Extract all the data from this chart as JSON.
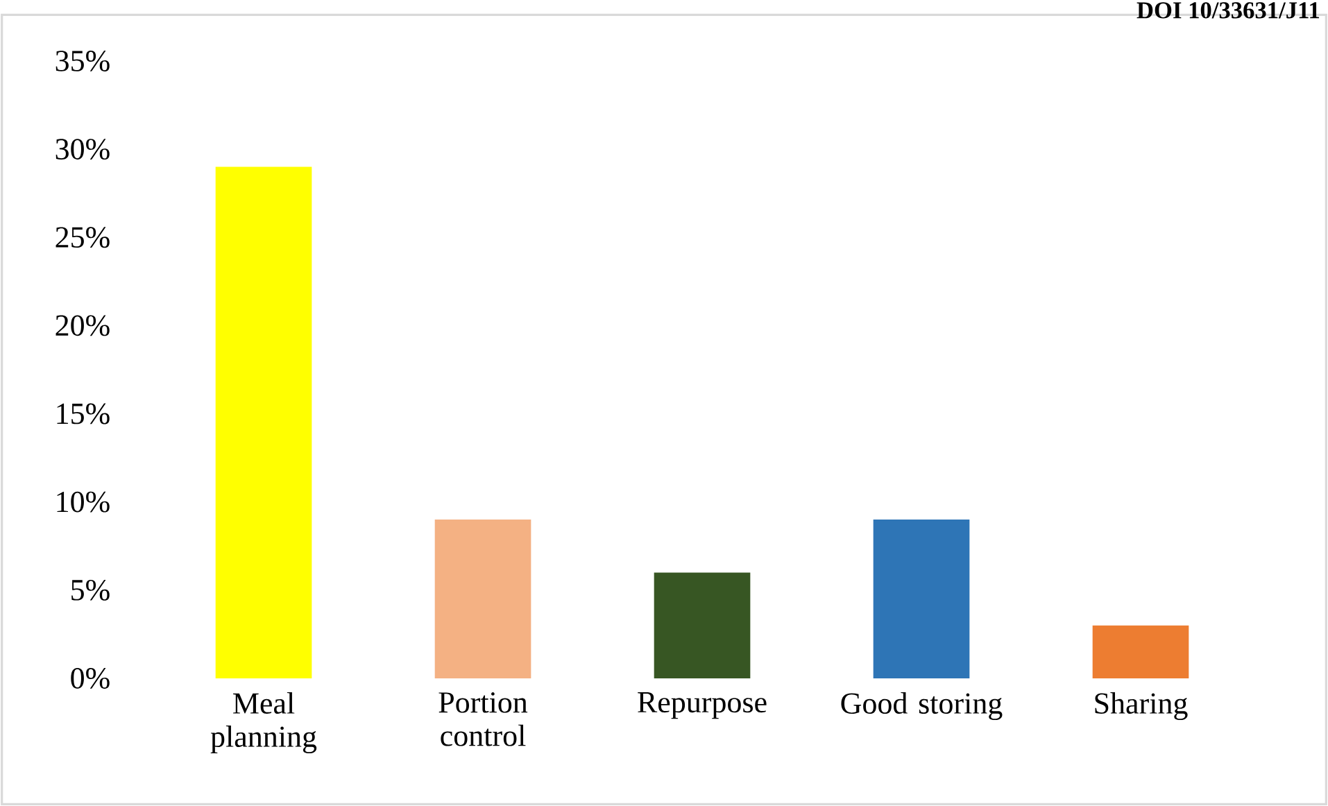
{
  "chart_data": {
    "type": "bar",
    "categories": [
      "Meal planning",
      "Portion control",
      "Repurpose",
      "Good storing",
      "Sharing"
    ],
    "values": [
      29,
      9,
      6,
      9,
      3
    ],
    "colors": [
      "#ffff00",
      "#f4b183",
      "#375623",
      "#2e75b6",
      "#ed7d31"
    ],
    "ylim": [
      0,
      35
    ],
    "yticks": [
      {
        "value": 0,
        "label": "0%"
      },
      {
        "value": 5,
        "label": "5%"
      },
      {
        "value": 10,
        "label": "10%"
      },
      {
        "value": 15,
        "label": "15%"
      },
      {
        "value": 20,
        "label": "20%"
      },
      {
        "value": 25,
        "label": "25%"
      },
      {
        "value": 30,
        "label": "30%"
      },
      {
        "value": 35,
        "label": "35%"
      }
    ],
    "annotations": [
      "DOI 10/33631/J11"
    ],
    "grid": false
  }
}
